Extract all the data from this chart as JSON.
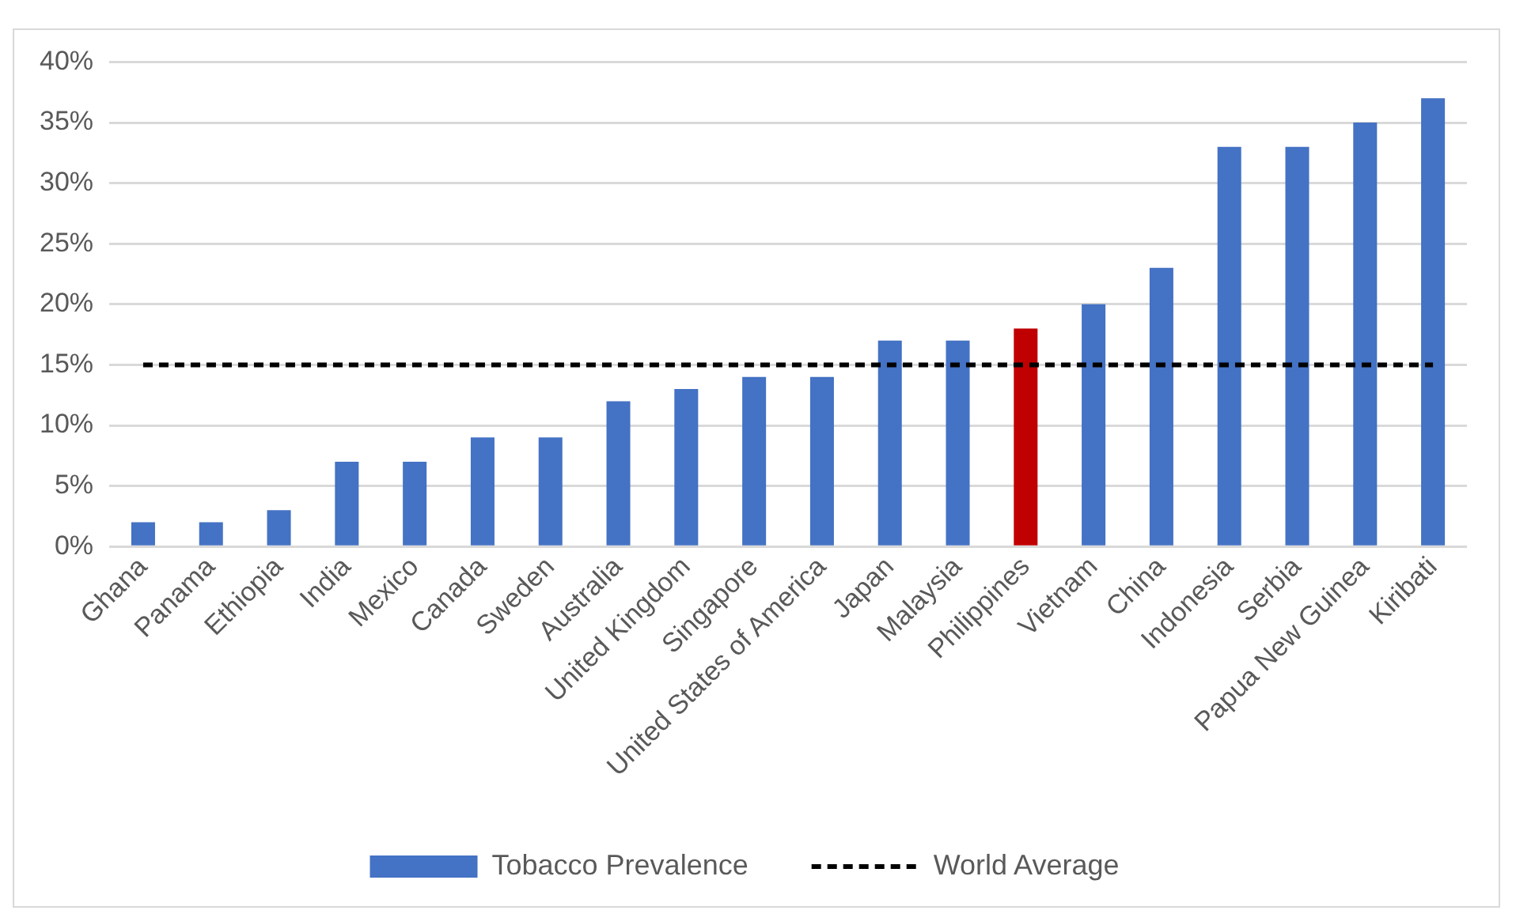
{
  "chart_data": {
    "type": "bar",
    "categories": [
      "Ghana",
      "Panama",
      "Ethiopia",
      "India",
      "Mexico",
      "Canada",
      "Sweden",
      "Australia",
      "United Kingdom",
      "Singapore",
      "United States of America",
      "Japan",
      "Malaysia",
      "Philippines",
      "Vietnam",
      "China",
      "Indonesia",
      "Serbia",
      "Papua New Guinea",
      "Kiribati"
    ],
    "series": [
      {
        "name": "Tobacco Prevalence",
        "color": "#4472c4",
        "colors": [
          "#4472c4",
          "#4472c4",
          "#4472c4",
          "#4472c4",
          "#4472c4",
          "#4472c4",
          "#4472c4",
          "#4472c4",
          "#4472c4",
          "#4472c4",
          "#4472c4",
          "#4472c4",
          "#4472c4",
          "#c00000",
          "#4472c4",
          "#4472c4",
          "#4472c4",
          "#4472c4",
          "#4472c4",
          "#4472c4"
        ],
        "values": [
          2,
          2,
          3,
          7,
          7,
          9,
          9,
          12,
          13,
          14,
          14,
          17,
          17,
          18,
          20,
          23,
          33,
          33,
          35,
          37
        ]
      },
      {
        "name": "World Average",
        "type": "line",
        "color": "#000000",
        "line_style": "dashed",
        "marker": "none",
        "values": [
          15,
          15,
          15,
          15,
          15,
          15,
          15,
          15,
          15,
          15,
          15,
          15,
          15,
          15,
          15,
          15,
          15,
          15,
          15,
          15
        ]
      }
    ],
    "ylim": [
      0,
      40
    ],
    "yticks": [
      {
        "value": 0,
        "label": "0%"
      },
      {
        "value": 5,
        "label": "5%"
      },
      {
        "value": 10,
        "label": "10%"
      },
      {
        "value": 15,
        "label": "15%"
      },
      {
        "value": 20,
        "label": "20%"
      },
      {
        "value": 25,
        "label": "25%"
      },
      {
        "value": 30,
        "label": "30%"
      },
      {
        "value": 35,
        "label": "35%"
      },
      {
        "value": 40,
        "label": "40%"
      }
    ],
    "grid": "y",
    "legend": "bottom"
  }
}
